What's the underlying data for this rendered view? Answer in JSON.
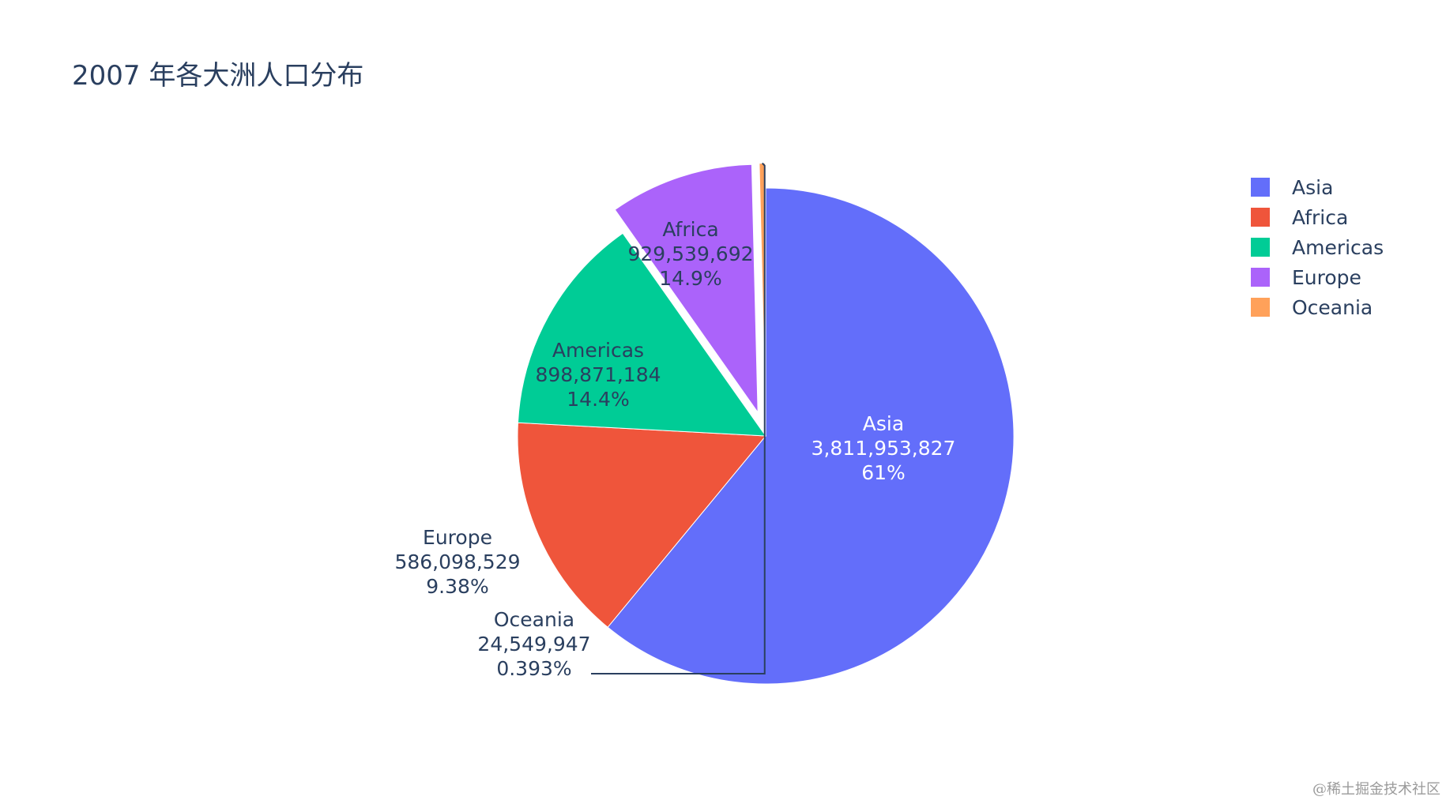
{
  "watermark": "@稀土掘金技术社区",
  "colors": {
    "Asia": "#636efa",
    "Africa": "#ef553b",
    "Americas": "#00cc96",
    "Europe": "#ab63fa",
    "Oceania": "#ffa15a",
    "text_dark": "#2a3f5f",
    "text_light": "#ffffff"
  },
  "chart_data": {
    "type": "pie",
    "title": "2007 年各大洲人口分布",
    "legend_position": "top-right",
    "slices": [
      {
        "name": "Asia",
        "value": 3811953827,
        "value_label": "3,811,953,827",
        "percent_label": "61%",
        "pulled": false
      },
      {
        "name": "Africa",
        "value": 929539692,
        "value_label": "929,539,692",
        "percent_label": "14.9%",
        "pulled": false
      },
      {
        "name": "Americas",
        "value": 898871184,
        "value_label": "898,871,184",
        "percent_label": "14.4%",
        "pulled": false
      },
      {
        "name": "Europe",
        "value": 586098529,
        "value_label": "586,098,529",
        "percent_label": "9.38%",
        "pulled": true
      },
      {
        "name": "Oceania",
        "value": 24549947,
        "value_label": "24,549,947",
        "percent_label": "0.393%",
        "pulled": true
      }
    ],
    "legend": [
      "Asia",
      "Africa",
      "Americas",
      "Europe",
      "Oceania"
    ]
  }
}
